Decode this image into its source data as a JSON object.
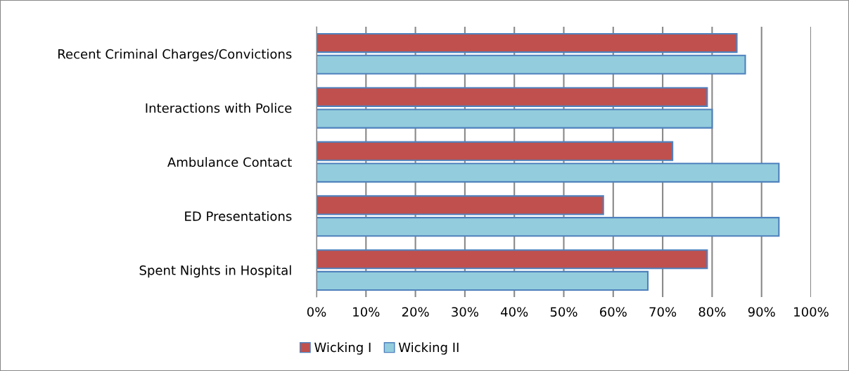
{
  "chart_data": {
    "type": "bar",
    "orientation": "horizontal",
    "categories": [
      "Recent Criminal Charges/Convictions",
      "Interactions with Police",
      "Ambulance Contact",
      "ED Presentations",
      "Spent Nights in Hospital"
    ],
    "series": [
      {
        "name": "Wicking I",
        "color": "#c0504d",
        "values": [
          85,
          79,
          72,
          58,
          79
        ]
      },
      {
        "name": "Wicking II",
        "color": "#93cddd",
        "values": [
          86.7,
          80,
          93.5,
          93.5,
          67
        ]
      }
    ],
    "xlim": [
      0,
      100
    ],
    "xticks": [
      {
        "value": 0,
        "label": "0%"
      },
      {
        "value": 10,
        "label": "10%"
      },
      {
        "value": 20,
        "label": "20%"
      },
      {
        "value": 30,
        "label": "30%"
      },
      {
        "value": 40,
        "label": "40%"
      },
      {
        "value": 50,
        "label": "50%"
      },
      {
        "value": 60,
        "label": "60%"
      },
      {
        "value": 70,
        "label": "70%"
      },
      {
        "value": 80,
        "label": "80%"
      },
      {
        "value": 90,
        "label": "90%"
      },
      {
        "value": 100,
        "label": "100%"
      }
    ],
    "grid": "x",
    "legend": "bottom"
  }
}
